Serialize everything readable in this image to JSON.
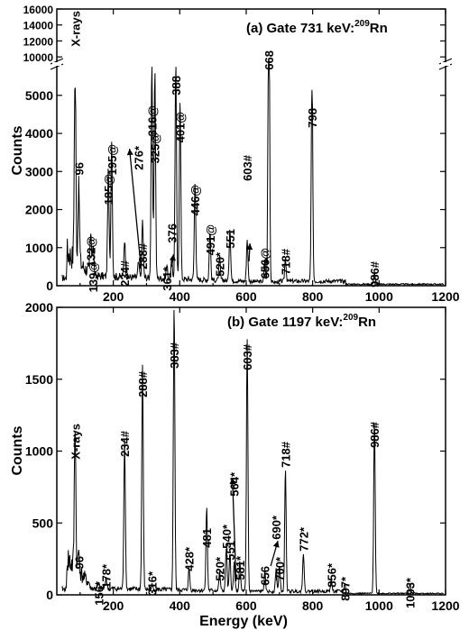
{
  "chart_data": [
    {
      "type": "line",
      "panel": "a",
      "title": "(a) Gate 731 keV:",
      "title_sup": "209",
      "title_tail": "Rn",
      "ylabel": "Counts",
      "xlabel": "",
      "xlim": [
        30,
        1200
      ],
      "x_ticks": [
        200,
        400,
        600,
        800,
        1000,
        1200
      ],
      "y_ticks_lower": [
        0,
        1000,
        2000,
        3000,
        4000,
        5000
      ],
      "y_ticks_upper": [
        10000,
        12000,
        14000,
        16000
      ],
      "ylim_lower": [
        0,
        5800
      ],
      "ylim_upper": [
        9000,
        16000
      ],
      "axis_break": true,
      "peaks": [
        {
          "x": 85,
          "y": 5700,
          "label": "X-rays"
        },
        {
          "x": 96,
          "y": 2000,
          "label": "96"
        },
        {
          "x": 132,
          "y": 1100,
          "label": "132@"
        },
        {
          "x": 139,
          "y": 850,
          "label": "139@"
        },
        {
          "x": 185,
          "y": 2800,
          "label": "185@"
        },
        {
          "x": 195,
          "y": 3600,
          "label": "195@"
        },
        {
          "x": 234,
          "y": 1000,
          "label": "234#"
        },
        {
          "x": 276,
          "y": 400,
          "label": "276*"
        },
        {
          "x": 288,
          "y": 1500,
          "label": "288#"
        },
        {
          "x": 316,
          "y": 5600,
          "label": "316@"
        },
        {
          "x": 325,
          "y": 5500,
          "label": "325@"
        },
        {
          "x": 361,
          "y": 350,
          "label": "361*"
        },
        {
          "x": 376,
          "y": 500,
          "label": "376"
        },
        {
          "x": 388,
          "y": 5700,
          "label": "388"
        },
        {
          "x": 401,
          "y": 4800,
          "label": "401@"
        },
        {
          "x": 446,
          "y": 2600,
          "label": "446@"
        },
        {
          "x": 491,
          "y": 1300,
          "label": "491@"
        },
        {
          "x": 520,
          "y": 600,
          "label": "520*"
        },
        {
          "x": 551,
          "y": 1400,
          "label": "551"
        },
        {
          "x": 603,
          "y": 1100,
          "label": "603#"
        },
        {
          "x": 656,
          "y": 500,
          "label": "656@"
        },
        {
          "x": 668,
          "y": 10000,
          "label": "668"
        },
        {
          "x": 718,
          "y": 600,
          "label": "718#"
        },
        {
          "x": 798,
          "y": 5700,
          "label": "798"
        },
        {
          "x": 986,
          "y": 300,
          "label": "986#"
        }
      ]
    },
    {
      "type": "line",
      "panel": "b",
      "title": "(b) Gate 1197 keV:",
      "title_sup": "209",
      "title_tail": "Rn",
      "ylabel": "Counts",
      "xlabel": "Energy (keV)",
      "xlim": [
        30,
        1200
      ],
      "ylim": [
        0,
        2000
      ],
      "x_ticks": [
        200,
        400,
        600,
        800,
        1000,
        1200
      ],
      "y_ticks": [
        0,
        500,
        1000,
        1500,
        2000
      ],
      "peaks": [
        {
          "x": 85,
          "y": 1030,
          "label": "X-rays"
        },
        {
          "x": 96,
          "y": 150,
          "label": "96"
        },
        {
          "x": 156,
          "y": 30,
          "label": "156*"
        },
        {
          "x": 178,
          "y": 80,
          "label": "178*"
        },
        {
          "x": 234,
          "y": 1040,
          "label": "234#"
        },
        {
          "x": 288,
          "y": 1560,
          "label": "288#"
        },
        {
          "x": 316,
          "y": 30,
          "label": "316*"
        },
        {
          "x": 383,
          "y": 2000,
          "label": "383#"
        },
        {
          "x": 428,
          "y": 150,
          "label": "428*"
        },
        {
          "x": 481,
          "y": 580,
          "label": "481"
        },
        {
          "x": 520,
          "y": 130,
          "label": "520*"
        },
        {
          "x": 540,
          "y": 300,
          "label": "540*"
        },
        {
          "x": 551,
          "y": 250,
          "label": "551"
        },
        {
          "x": 564,
          "y": 200,
          "label": "564*"
        },
        {
          "x": 581,
          "y": 200,
          "label": "581*"
        },
        {
          "x": 603,
          "y": 1750,
          "label": "603#"
        },
        {
          "x": 656,
          "y": 130,
          "label": "656"
        },
        {
          "x": 690,
          "y": 160,
          "label": "690*"
        },
        {
          "x": 700,
          "y": 170,
          "label": "700*"
        },
        {
          "x": 718,
          "y": 850,
          "label": "718#"
        },
        {
          "x": 772,
          "y": 270,
          "label": "772*"
        },
        {
          "x": 856,
          "y": 80,
          "label": "856*"
        },
        {
          "x": 897,
          "y": 50,
          "label": "897*"
        },
        {
          "x": 986,
          "y": 1220,
          "label": "986#"
        },
        {
          "x": 1093,
          "y": 70,
          "label": "1093*"
        }
      ]
    }
  ]
}
